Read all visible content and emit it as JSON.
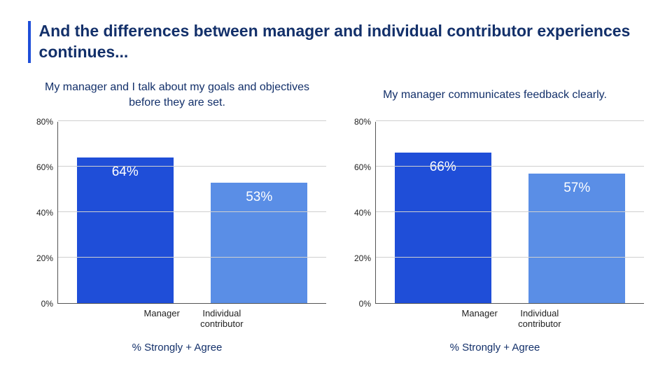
{
  "title": "And the differences between manager and individual contributor experiences continues...",
  "title_color": "#13306a",
  "accent_color": "#1f4ed8",
  "charts": [
    {
      "title": "My manager and I talk about my goals and objectives before they are set.",
      "type": "bar",
      "ymax": 80,
      "ytick_step": 20,
      "yticks": [
        0,
        20,
        40,
        60,
        80
      ],
      "grid_color": "#cfcfcf",
      "axis_color": "#555555",
      "categories": [
        "Manager",
        "Individual contributor"
      ],
      "values": [
        64,
        53
      ],
      "value_labels": [
        "64%",
        "53%"
      ],
      "bar_colors": [
        "#1f4ed8",
        "#5a8ee6"
      ],
      "bar_label_color": "#ffffff",
      "sub_caption": "% Strongly + Agree"
    },
    {
      "title": "My manager communicates feedback clearly.",
      "type": "bar",
      "ymax": 80,
      "ytick_step": 20,
      "yticks": [
        0,
        20,
        40,
        60,
        80
      ],
      "grid_color": "#cfcfcf",
      "axis_color": "#555555",
      "categories": [
        "Manager",
        "Individual contributor"
      ],
      "values": [
        66,
        57
      ],
      "value_labels": [
        "66%",
        "57%"
      ],
      "bar_colors": [
        "#1f4ed8",
        "#5a8ee6"
      ],
      "bar_label_color": "#ffffff",
      "sub_caption": "% Strongly + Agree"
    }
  ]
}
